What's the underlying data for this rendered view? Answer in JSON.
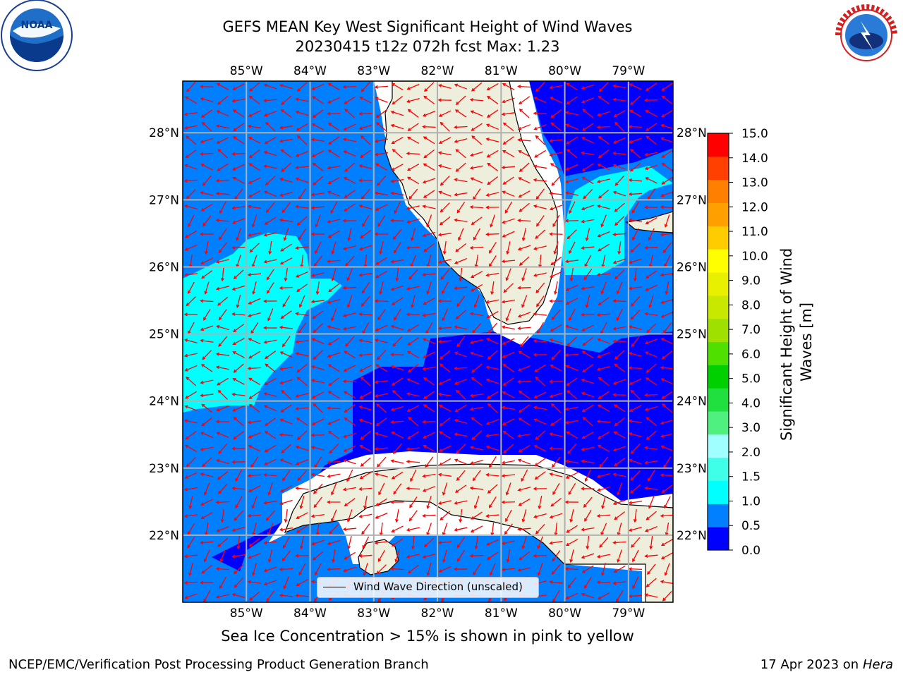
{
  "title": {
    "line1": "GEFS MEAN Key West Significant Height of Wind Waves",
    "line2": "20230415 t12z 072h fcst   Max: 1.23"
  },
  "map": {
    "lon_ticks": [
      "85°W",
      "84°W",
      "83°W",
      "82°W",
      "81°W",
      "80°W",
      "79°W"
    ],
    "lat_ticks": [
      "28°N",
      "27°N",
      "26°N",
      "25°N",
      "24°N",
      "23°N",
      "22°N"
    ],
    "lon_range": [
      -86.0,
      -78.3
    ],
    "lat_range": [
      21.0,
      28.77
    ],
    "colors": {
      "ocean_deep": "#0000ff",
      "ocean_mid": "#0080ff",
      "ocean_cyan": "#00ffff",
      "land": "#eeeedd",
      "arrow": "#ff0000",
      "grid": "#b0b0b0"
    },
    "legend_label": "Wind Wave Direction (unscaled)"
  },
  "colorbar": {
    "label": "Significant Height of Wind Waves [m]",
    "tick_labels": [
      "0.0",
      "0.5",
      "1.0",
      "1.5",
      "2.0",
      "3.0",
      "4.0",
      "5.0",
      "6.0",
      "7.0",
      "8.0",
      "9.0",
      "10.0",
      "11.0",
      "12.0",
      "13.0",
      "14.0",
      "15.0"
    ],
    "colors": [
      "#0000ff",
      "#0080ff",
      "#00ffff",
      "#40ffe8",
      "#a0ffff",
      "#50f080",
      "#20e040",
      "#00d000",
      "#50e000",
      "#a0e000",
      "#c8e800",
      "#e8f000",
      "#ffff00",
      "#ffcc00",
      "#ffa000",
      "#ff8000",
      "#ff4000",
      "#ff0000"
    ]
  },
  "logos": {
    "noaa_text": "NOAA",
    "nws_text": "NATIONAL WEATHER SERVICE"
  },
  "ice_note": "Sea Ice Concentration > 15% is shown in pink to yellow",
  "footer": {
    "left": "NCEP/EMC/Verification Post Processing Product Generation Branch",
    "right_date": "17 Apr 2023 on",
    "right_host": "Hera"
  }
}
